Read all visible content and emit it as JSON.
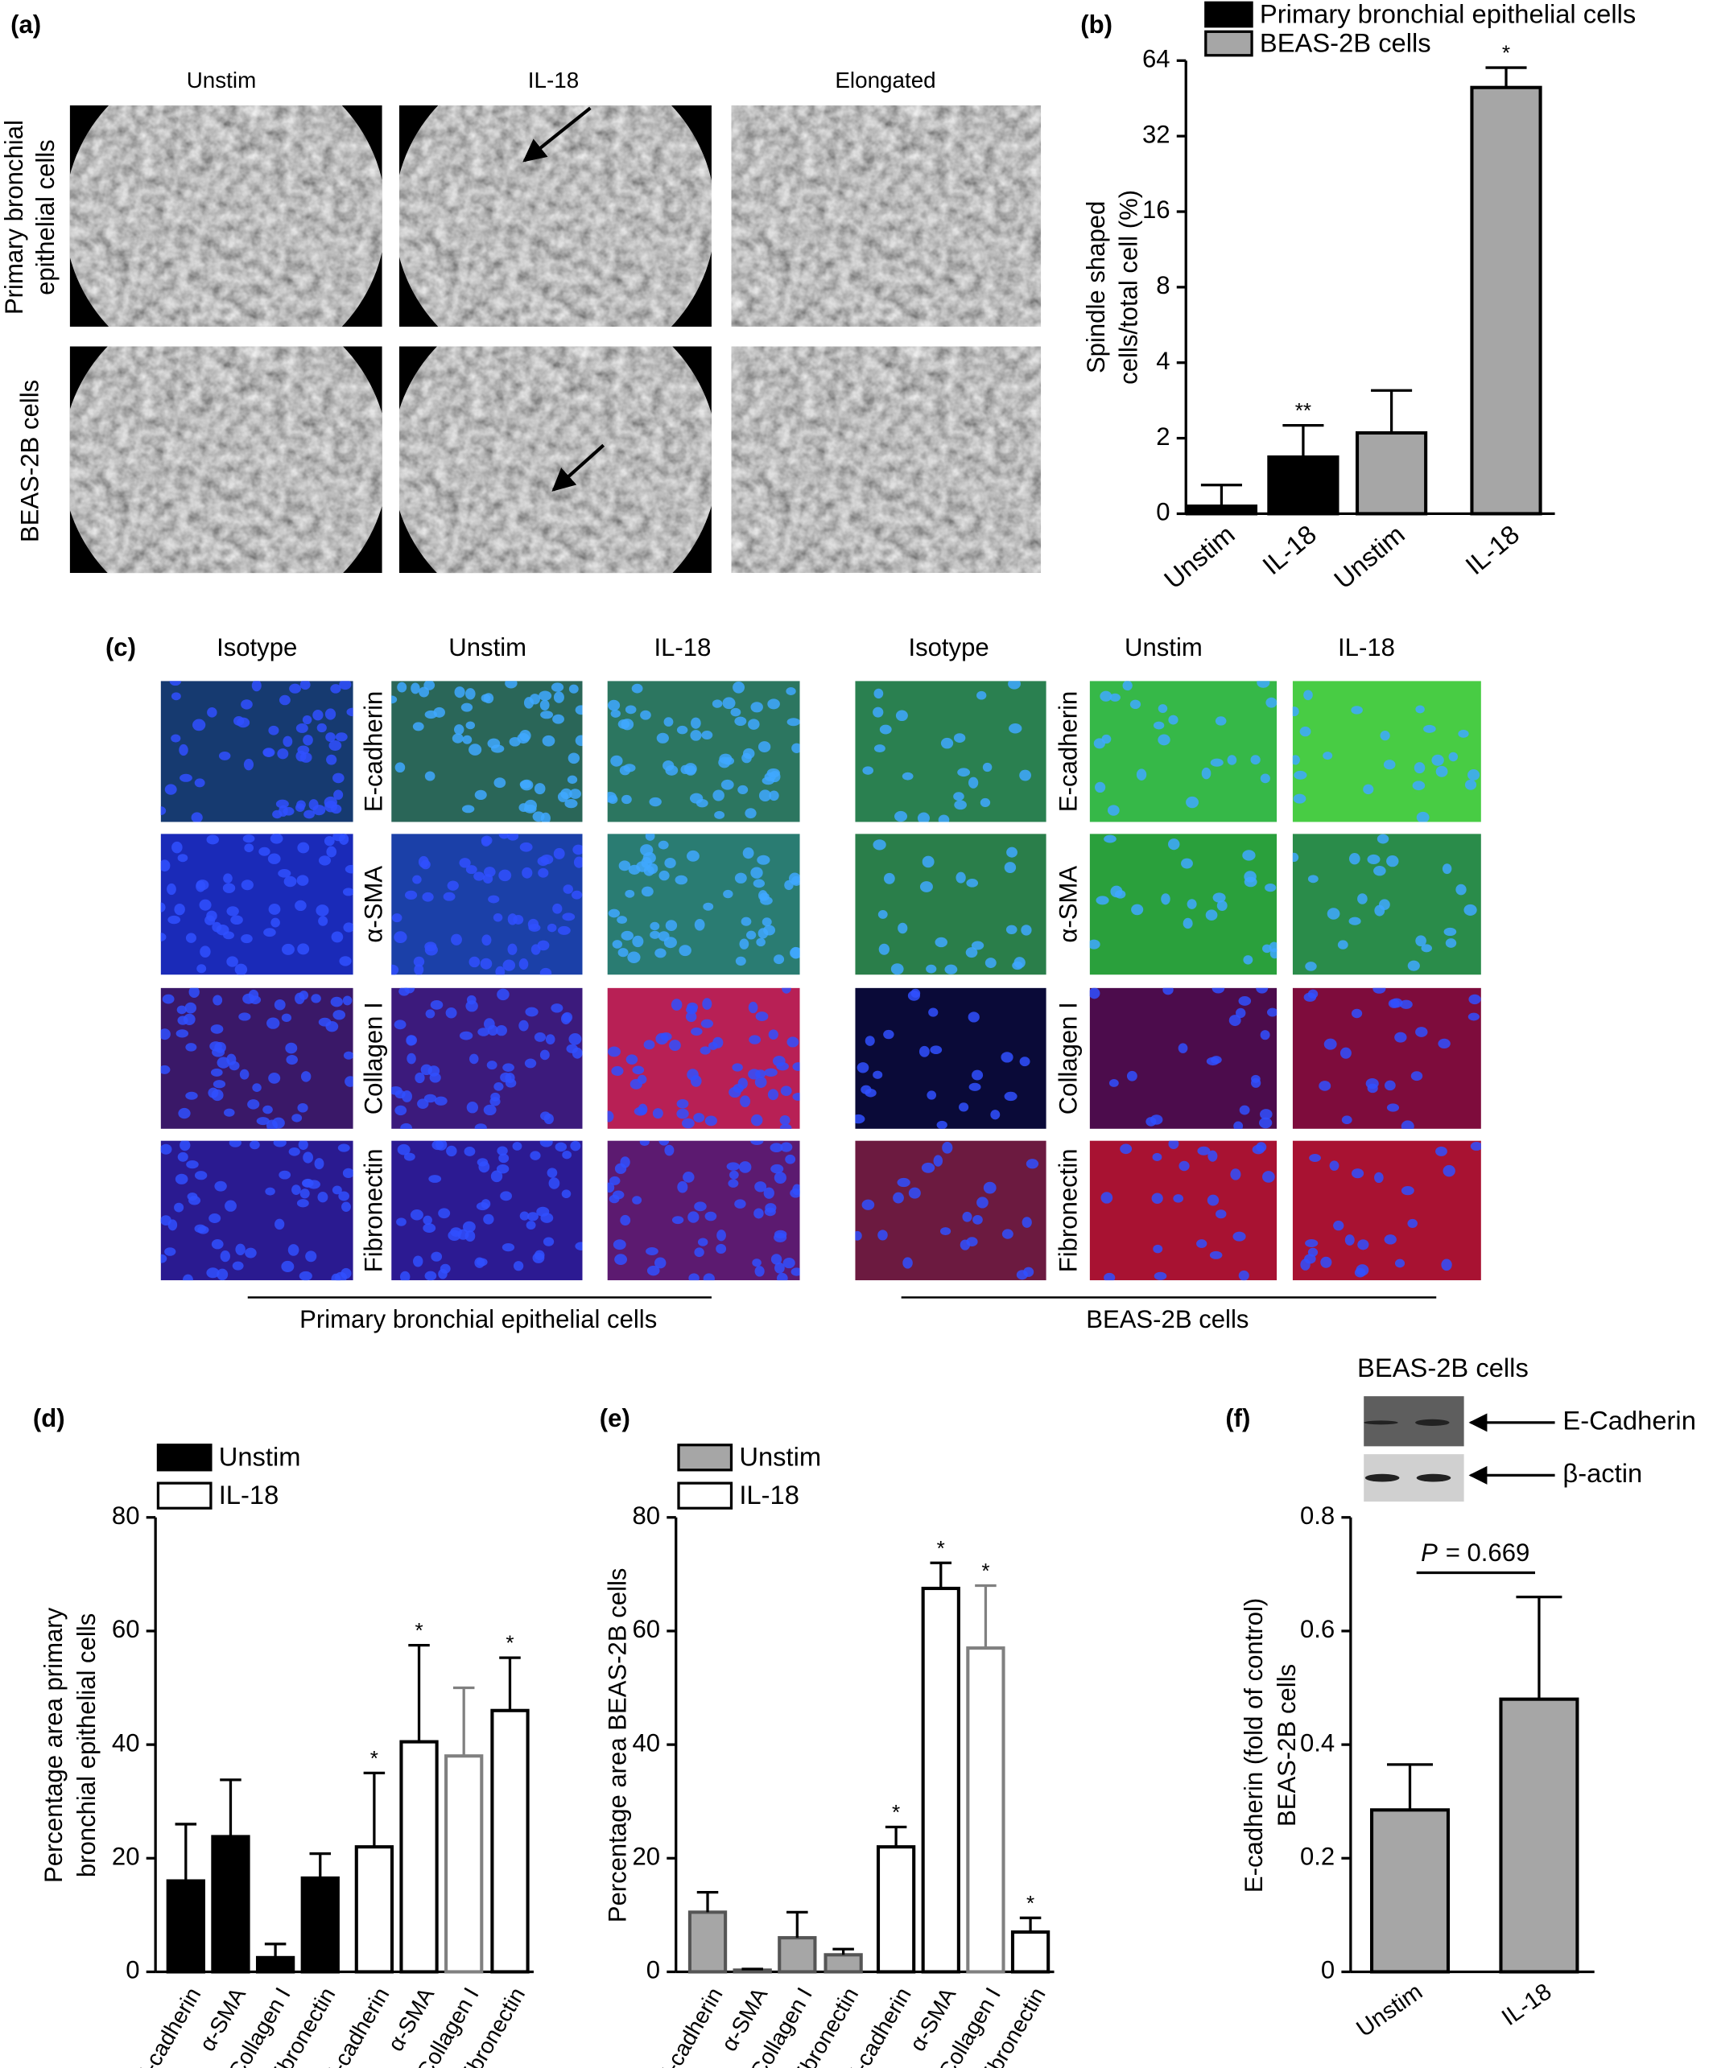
{
  "panel_a": {
    "label": "(a)",
    "columns": [
      "Unstim",
      "IL-18",
      "Elongated"
    ],
    "rows": [
      [
        "Primary bronchial",
        "epithelial cells"
      ],
      [
        "BEAS-2B cells"
      ]
    ]
  },
  "panel_c": {
    "label": "(c)",
    "columns": [
      "Isotype",
      "Unstim",
      "IL-18"
    ],
    "stains": [
      "E-cadherin",
      "α-SMA",
      "Collagen I",
      "Fibronectin"
    ],
    "groups": [
      "Primary bronchial epithelial cells",
      "BEAS-2B cells"
    ]
  },
  "chart_data": [
    {
      "type": "bar",
      "panel": "(b)",
      "legend": [
        {
          "name": "Primary bronchial epithelial cells",
          "color": "#000000"
        },
        {
          "name": "BEAS-2B cells",
          "color": "#a6a6a6"
        }
      ],
      "categories": [
        "Unstim",
        "IL-18",
        "Unstim",
        "IL-18"
      ],
      "values": [
        0.2,
        1.5,
        2.1,
        50
      ],
      "errors": [
        0.56,
        0.75,
        1.0,
        10
      ],
      "bar_colors": [
        "#000000",
        "#000000",
        "#a6a6a6",
        "#a6a6a6"
      ],
      "annotations": [
        null,
        "**",
        null,
        "*"
      ],
      "ylabel": [
        "Spindle shaped",
        "cells/total cell (%)"
      ],
      "yscale": "log2",
      "ylim": [
        0,
        64
      ],
      "yticks": [
        0,
        2,
        4,
        8,
        16,
        32,
        64
      ]
    },
    {
      "type": "grouped_bar",
      "panel": "(d)",
      "categories": [
        "E-cadherin",
        "α-SMA",
        "Collagen I",
        "Fibronectin"
      ],
      "series": [
        {
          "name": "Unstim",
          "color": "#000000",
          "edgecolors": [
            "#000000",
            "#000000",
            "#000000",
            "#000000"
          ],
          "values": [
            16,
            23.8,
            2.5,
            16.5
          ],
          "errors": [
            10,
            10,
            2.4,
            4.3
          ],
          "annotations": [
            null,
            null,
            null,
            null
          ]
        },
        {
          "name": "IL-18",
          "color": "#ffffff",
          "edgecolors": [
            "#000000",
            "#000000",
            "#808080",
            "#000000"
          ],
          "values": [
            22,
            40.5,
            38,
            46
          ],
          "errors": [
            13,
            17,
            12,
            9.3
          ],
          "annotations": [
            "*",
            "*",
            null,
            "*"
          ]
        }
      ],
      "ylabel": [
        "Percentage area primary",
        "bronchial epithelial cells"
      ],
      "ylim": [
        0,
        80
      ],
      "yticks": [
        0,
        20,
        40,
        60,
        80
      ]
    },
    {
      "type": "grouped_bar",
      "panel": "(e)",
      "categories": [
        "E-cadherin",
        "α-SMA",
        "Collagen I",
        "Fibronectin"
      ],
      "series": [
        {
          "name": "Unstim",
          "color": "#a6a6a6",
          "edgecolors": [
            "#555555",
            "#555555",
            "#555555",
            "#555555"
          ],
          "values": [
            10.5,
            0.3,
            6,
            3
          ],
          "errors": [
            3.5,
            0.2,
            4.5,
            1
          ],
          "annotations": [
            null,
            null,
            null,
            null
          ]
        },
        {
          "name": "IL-18",
          "color": "#ffffff",
          "edgecolors": [
            "#000000",
            "#000000",
            "#808080",
            "#000000"
          ],
          "values": [
            22,
            67.5,
            57,
            7
          ],
          "errors": [
            3.5,
            4.5,
            11,
            2.5
          ],
          "annotations": [
            "*",
            "*",
            "*",
            "*"
          ]
        }
      ],
      "ylabel": [
        "Percentage area  BEAS-2B cells"
      ],
      "ylim": [
        0,
        80
      ],
      "yticks": [
        0,
        20,
        40,
        60,
        80
      ]
    },
    {
      "type": "bar",
      "panel": "(f)",
      "blot": {
        "title": "BEAS-2B cells",
        "bands": [
          "E-Cadherin",
          "β-actin"
        ]
      },
      "categories": [
        "Unstim",
        "IL-18"
      ],
      "values": [
        0.285,
        0.48
      ],
      "errors": [
        0.08,
        0.18
      ],
      "bar_colors": [
        "#a6a6a6",
        "#a6a6a6"
      ],
      "p_label": {
        "symbol": "P",
        "text": "= 0.669"
      },
      "ylabel": [
        "E-cadherin (fold of control)",
        "BEAS-2B cells"
      ],
      "ylim": [
        0,
        0.8
      ],
      "yticks": [
        0,
        0.2,
        0.4,
        0.6,
        0.8
      ]
    }
  ]
}
